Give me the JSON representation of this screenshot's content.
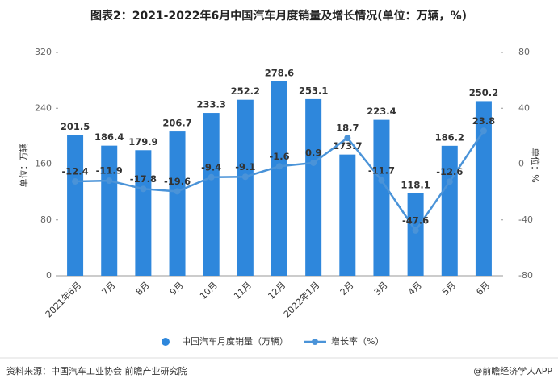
{
  "chart_data": {
    "type": "bar",
    "title": "图表2：2021-2022年6月中国汽车月度销量及增长情况(单位：万辆，%)",
    "ylabel": "单位：万辆",
    "y2label": "单位：%",
    "categories": [
      "2021年6月",
      "7月",
      "8月",
      "9月",
      "10月",
      "11月",
      "12月",
      "2022年1月",
      "2月",
      "3月",
      "4月",
      "5月",
      "6月"
    ],
    "series": [
      {
        "name": "中国汽车月度销量（万辆）",
        "type": "bar",
        "color": "#2e87dc",
        "values": [
          201.5,
          186.4,
          179.9,
          206.7,
          233.3,
          252.2,
          278.6,
          253.1,
          173.7,
          223.4,
          118.1,
          186.2,
          250.2
        ]
      },
      {
        "name": "增长率（%）",
        "type": "line",
        "axis": "y2",
        "color": "#4a93d8",
        "values": [
          -12.4,
          -11.9,
          -17.8,
          -19.6,
          -9.4,
          -9.1,
          -1.6,
          0.9,
          18.7,
          -11.7,
          -47.6,
          -12.6,
          23.8
        ]
      }
    ],
    "ylim": [
      0,
      320
    ],
    "yticks": [
      0,
      80,
      160,
      240,
      320
    ],
    "y2lim": [
      -80,
      80
    ],
    "y2ticks": [
      -80,
      -40,
      0,
      40,
      80
    ]
  },
  "footer": {
    "source": "资料来源：中国汽车工业协会 前瞻产业研究院",
    "credit": "@前瞻经济学人APP"
  }
}
